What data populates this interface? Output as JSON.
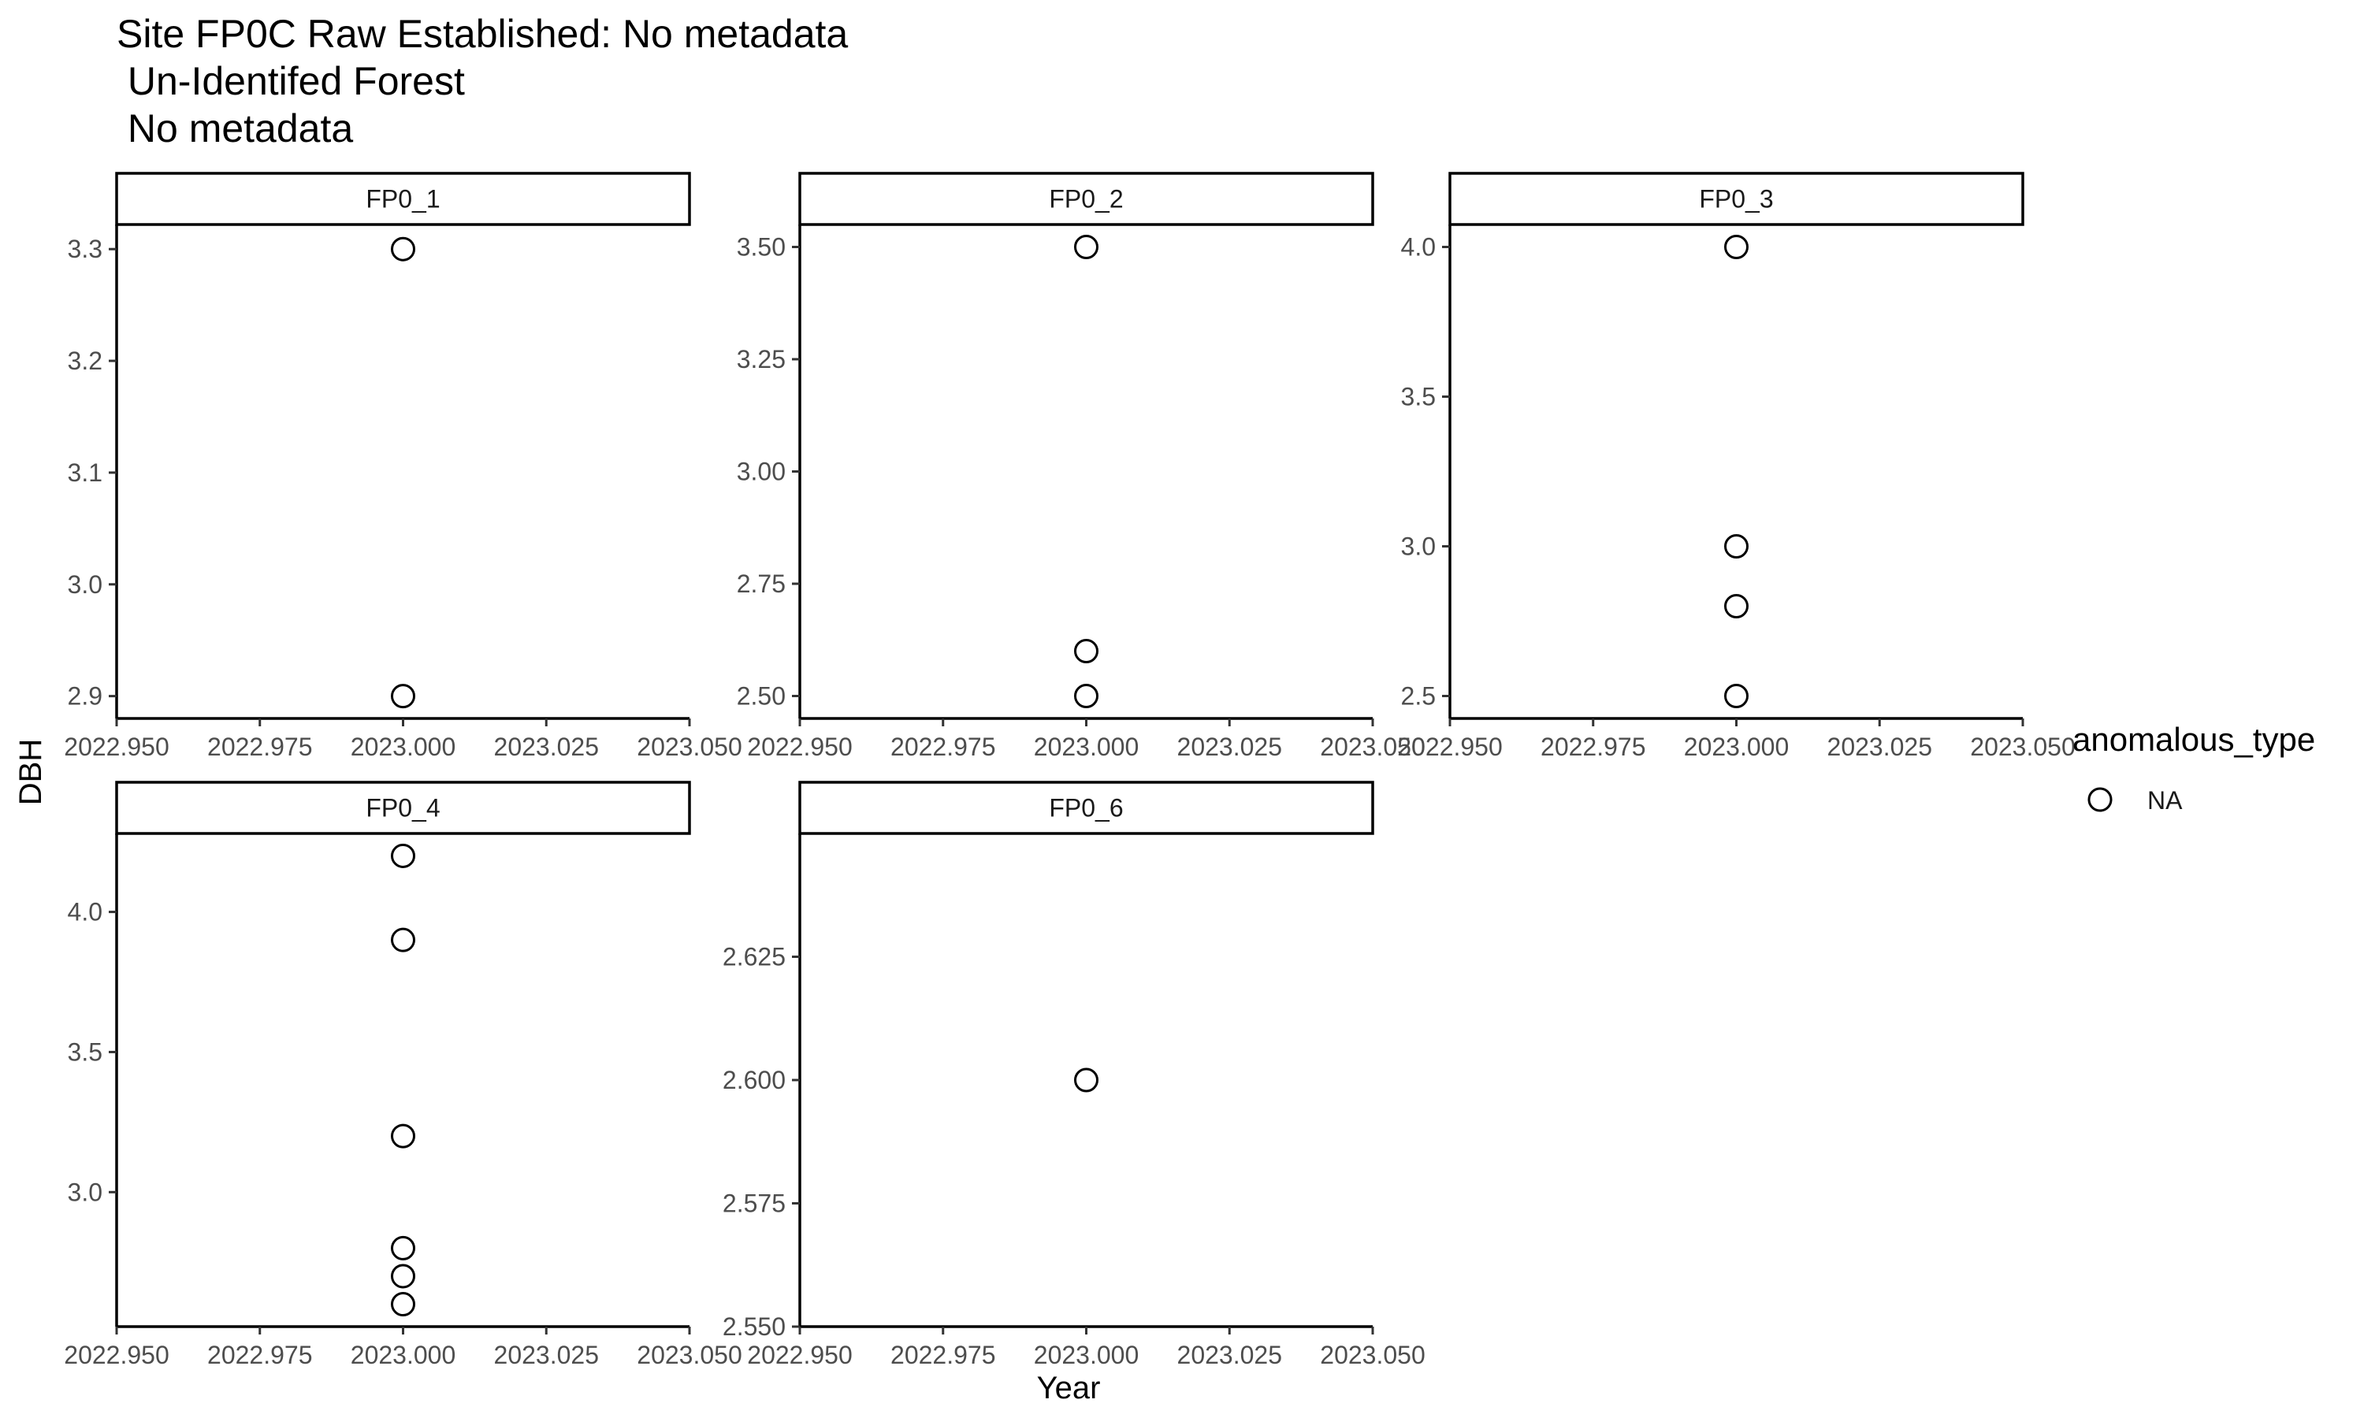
{
  "chart_data": {
    "type": "scatter",
    "title_lines": [
      "Site FP0C Raw Established: No metadata",
      " Un-Identifed Forest",
      " No metadata"
    ],
    "xlabel": "Year",
    "ylabel": "DBH",
    "legend": {
      "title": "anomalous_type",
      "entries": [
        "NA"
      ],
      "placement": "right"
    },
    "grid": false,
    "panels": [
      {
        "name": "FP0_1",
        "xlim": [
          2022.95,
          2023.05
        ],
        "xticks": [
          "2022.950",
          "2022.975",
          "2023.000",
          "2023.025",
          "2023.050"
        ],
        "ylim": [
          2.88,
          3.322
        ],
        "yticks": [
          "2.9",
          "3.0",
          "3.1",
          "3.2",
          "3.3"
        ],
        "points": [
          {
            "x": 2023.0,
            "y": 3.3
          },
          {
            "x": 2023.0,
            "y": 2.9
          }
        ]
      },
      {
        "name": "FP0_2",
        "xlim": [
          2022.95,
          2023.05
        ],
        "xticks": [
          "2022.950",
          "2022.975",
          "2023.000",
          "2023.025",
          "2023.050"
        ],
        "ylim": [
          2.45,
          3.55
        ],
        "yticks": [
          "2.50",
          "2.75",
          "3.00",
          "3.25",
          "3.50"
        ],
        "points": [
          {
            "x": 2023.0,
            "y": 3.5
          },
          {
            "x": 2023.0,
            "y": 2.6
          },
          {
            "x": 2023.0,
            "y": 2.5
          }
        ]
      },
      {
        "name": "FP0_3",
        "xlim": [
          2022.95,
          2023.05
        ],
        "xticks": [
          "2022.950",
          "2022.975",
          "2023.000",
          "2023.025",
          "2023.050"
        ],
        "ylim": [
          2.425,
          4.075
        ],
        "yticks": [
          "2.5",
          "3.0",
          "3.5",
          "4.0"
        ],
        "points": [
          {
            "x": 2023.0,
            "y": 4.0
          },
          {
            "x": 2023.0,
            "y": 3.0
          },
          {
            "x": 2023.0,
            "y": 2.8
          },
          {
            "x": 2023.0,
            "y": 2.5
          }
        ]
      },
      {
        "name": "FP0_4",
        "xlim": [
          2022.95,
          2023.05
        ],
        "xticks": [
          "2022.950",
          "2022.975",
          "2023.000",
          "2023.025",
          "2023.050"
        ],
        "ylim": [
          2.52,
          4.28
        ],
        "yticks": [
          "3.0",
          "3.5",
          "4.0"
        ],
        "points": [
          {
            "x": 2023.0,
            "y": 4.2
          },
          {
            "x": 2023.0,
            "y": 3.9
          },
          {
            "x": 2023.0,
            "y": 3.2
          },
          {
            "x": 2023.0,
            "y": 2.8
          },
          {
            "x": 2023.0,
            "y": 2.7
          },
          {
            "x": 2023.0,
            "y": 2.6
          }
        ]
      },
      {
        "name": "FP0_6",
        "xlim": [
          2022.95,
          2023.05
        ],
        "xticks": [
          "2022.950",
          "2022.975",
          "2023.000",
          "2023.025",
          "2023.050"
        ],
        "ylim": [
          2.55,
          2.65
        ],
        "yticks": [
          "2.550",
          "2.575",
          "2.600",
          "2.625"
        ],
        "points": [
          {
            "x": 2023.0,
            "y": 2.6
          }
        ]
      }
    ]
  }
}
